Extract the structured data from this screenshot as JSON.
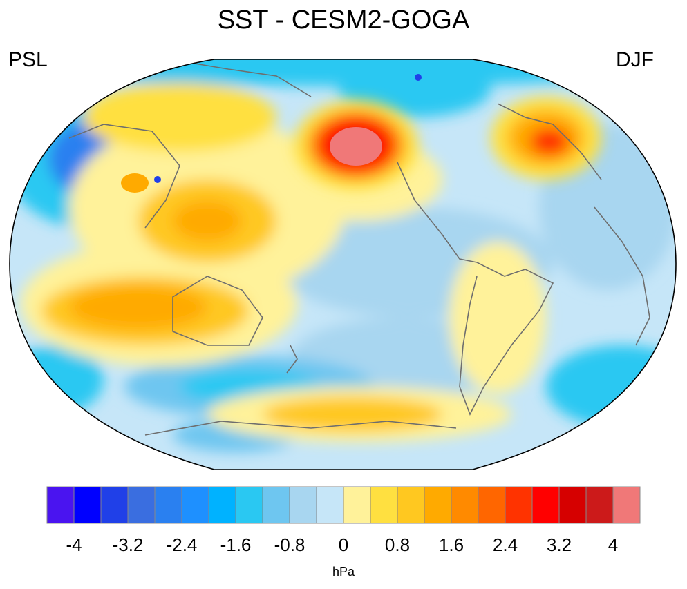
{
  "title": "SST - CESM2-GOGA",
  "left_label": "PSL",
  "right_label": "DJF",
  "colorbar": {
    "units": "hPa",
    "tick_labels": [
      "-4",
      "-3.2",
      "-2.4",
      "-1.6",
      "-0.8",
      "0",
      "0.8",
      "1.6",
      "2.4",
      "3.2",
      "4"
    ],
    "colors": [
      "#4a14f0",
      "#0000ff",
      "#2040e8",
      "#3a6ee0",
      "#2a80f0",
      "#1e90ff",
      "#00b2ff",
      "#2ac8f2",
      "#6ec6f0",
      "#a8d6f0",
      "#c6e6f8",
      "#fff29a",
      "#ffe040",
      "#ffc820",
      "#ffaa00",
      "#ff8a00",
      "#ff6600",
      "#ff3300",
      "#ff0000",
      "#d60000",
      "#cc1a1a",
      "#f07878"
    ],
    "boundaries": [
      -4,
      -3.6,
      -3.2,
      -2.8,
      -2.4,
      -2.0,
      -1.6,
      -1.2,
      -0.8,
      -0.4,
      0,
      0.4,
      0.8,
      1.2,
      1.6,
      2.0,
      2.4,
      2.8,
      3.2,
      3.6,
      4
    ]
  },
  "map": {
    "projection": "robinson",
    "central_longitude": 180,
    "field": "PSL DJF anomaly (hPa)"
  }
}
